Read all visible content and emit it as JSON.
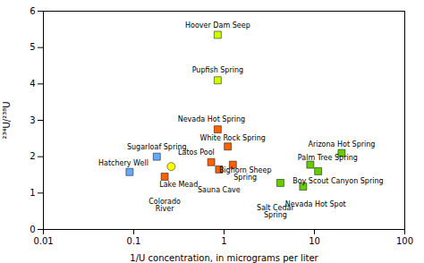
{
  "chart_data": {
    "type": "scatter",
    "xlabel": "1/U concentration, in micrograms per liter",
    "ylabel": "²³⁴U/²³⁸U",
    "log": "x",
    "xlim": [
      0.01,
      100
    ],
    "xticks": [
      0.01,
      0.1,
      1,
      10,
      100
    ],
    "ylim": [
      0,
      6
    ],
    "yticks": [
      0,
      1,
      2,
      3,
      4,
      5,
      6
    ],
    "grid": false,
    "x": [
      0.85,
      0.85,
      0.85,
      1.1,
      1.25,
      0.72,
      0.88,
      0.18,
      0.09,
      0.26,
      0.22,
      20.0,
      9.0,
      11.0,
      4.2,
      7.5
    ],
    "values": [
      5.35,
      4.1,
      2.75,
      2.28,
      1.78,
      1.85,
      1.65,
      2.0,
      1.58,
      1.73,
      1.45,
      2.1,
      1.78,
      1.6,
      1.28,
      1.18
    ],
    "annotations": [
      "Hoover Dam Seep",
      "Pupfish Spring",
      "Nevada Hot Spring",
      "White Rock Spring",
      "Bighorn Sheep\nSpring",
      "Latos Pool",
      "Sauna Cave",
      "Sugarloaf Spring",
      "Hatchery Well",
      "Lake Mead",
      "Colorado\nRiver",
      "Arizona Hot Spring",
      "Palm Tree Spring",
      "Boy Scout Canyon Spring",
      "Salt Cedar\nSpring",
      "Nevada Hot Spot"
    ],
    "colors": [
      "#ccff00",
      "#ccff00",
      "#ff6000",
      "#ff6000",
      "#ff6000",
      "#ff6000",
      "#ff6000",
      "#66aaff",
      "#66aaff",
      "#ffff00",
      "#ff6000",
      "#66cc00",
      "#66cc00",
      "#66cc00",
      "#66cc00",
      "#66cc00"
    ],
    "markers": [
      "square",
      "square",
      "square",
      "square",
      "square",
      "square",
      "square",
      "square",
      "square",
      "circle",
      "square",
      "square",
      "square",
      "square",
      "square",
      "square"
    ]
  }
}
